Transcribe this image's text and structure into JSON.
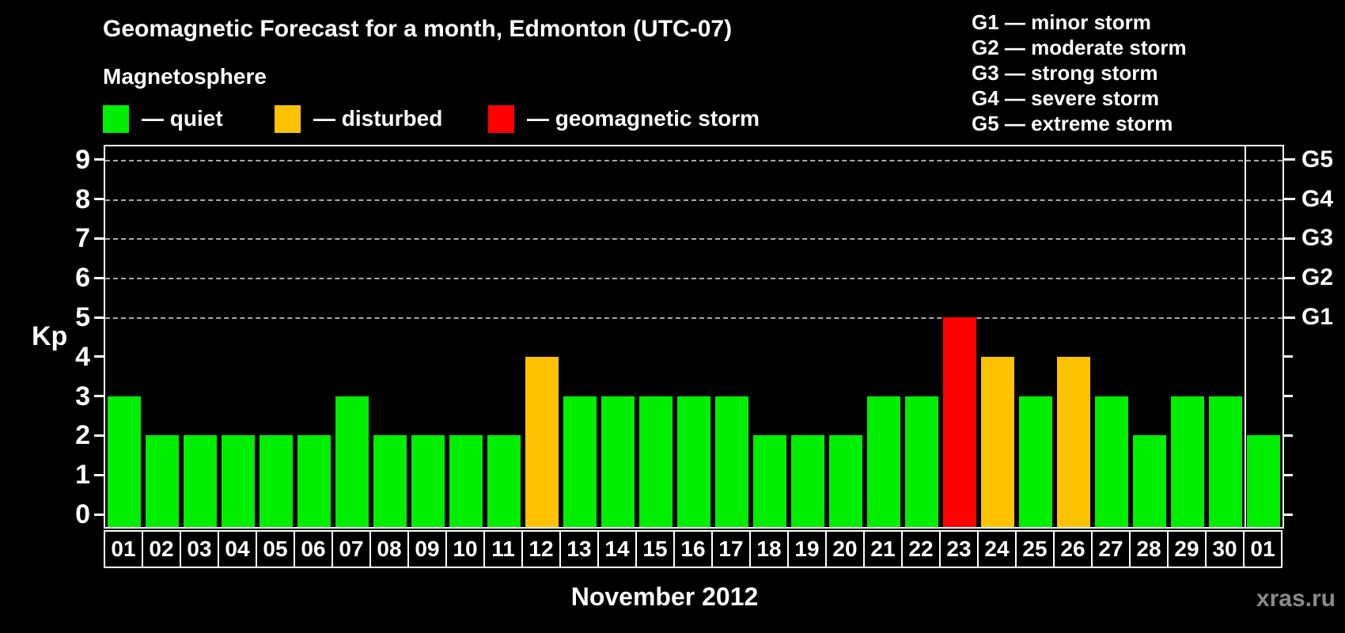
{
  "header": {
    "title": "Geomagnetic Forecast for a month, Edmonton (UTC-07)",
    "subtitle": "Magnetosphere"
  },
  "legend": [
    {
      "status": "quiet",
      "label": "— quiet",
      "color": "#00ee00"
    },
    {
      "status": "disturbed",
      "label": "— disturbed",
      "color": "#ffc200"
    },
    {
      "status": "storm",
      "label": "— geomagnetic storm",
      "color": "#ff0000"
    }
  ],
  "g_legend": [
    "G1 — minor storm",
    "G2 — moderate storm",
    "G3 — strong storm",
    "G4 — severe storm",
    "G5 — extreme storm"
  ],
  "axis": {
    "left_label": "Kp",
    "left_ticks": [
      "0",
      "1",
      "2",
      "3",
      "4",
      "5",
      "6",
      "7",
      "8",
      "9"
    ]
  },
  "month_label": "November 2012",
  "watermark": "xras.ru",
  "chart_data": {
    "type": "bar",
    "title": "Geomagnetic Forecast for a month, Edmonton (UTC-07)",
    "categories": [
      "01",
      "02",
      "03",
      "04",
      "05",
      "06",
      "07",
      "08",
      "09",
      "10",
      "11",
      "12",
      "13",
      "14",
      "15",
      "16",
      "17",
      "18",
      "19",
      "20",
      "21",
      "22",
      "23",
      "24",
      "25",
      "26",
      "27",
      "28",
      "29",
      "30",
      "01"
    ],
    "values": [
      3,
      2,
      2,
      2,
      2,
      2,
      3,
      2,
      2,
      2,
      2,
      4,
      3,
      3,
      3,
      3,
      3,
      2,
      2,
      2,
      3,
      3,
      5,
      4,
      3,
      4,
      3,
      2,
      3,
      3,
      2
    ],
    "xlabel": "November 2012",
    "ylabel": "Kp",
    "ylim": [
      0,
      9
    ],
    "grid": "dashed horizontal lines at Kp 5-9 only",
    "gridlines_kp": [
      5,
      6,
      7,
      8,
      9
    ],
    "right_axis_labels": [
      {
        "kp": 5,
        "label": "G1"
      },
      {
        "kp": 6,
        "label": "G2"
      },
      {
        "kp": 7,
        "label": "G3"
      },
      {
        "kp": 8,
        "label": "G4"
      },
      {
        "kp": 9,
        "label": "G5"
      }
    ],
    "status_colors": {
      "quiet": "#00ee00",
      "disturbed": "#ffc200",
      "storm": "#ff0000"
    },
    "color_rules": {
      "quiet_max_kp": 3,
      "disturbed_kp": 4,
      "storm_min_kp": 5
    },
    "next_month_separator_index": 30,
    "legend_position": "top-left"
  }
}
